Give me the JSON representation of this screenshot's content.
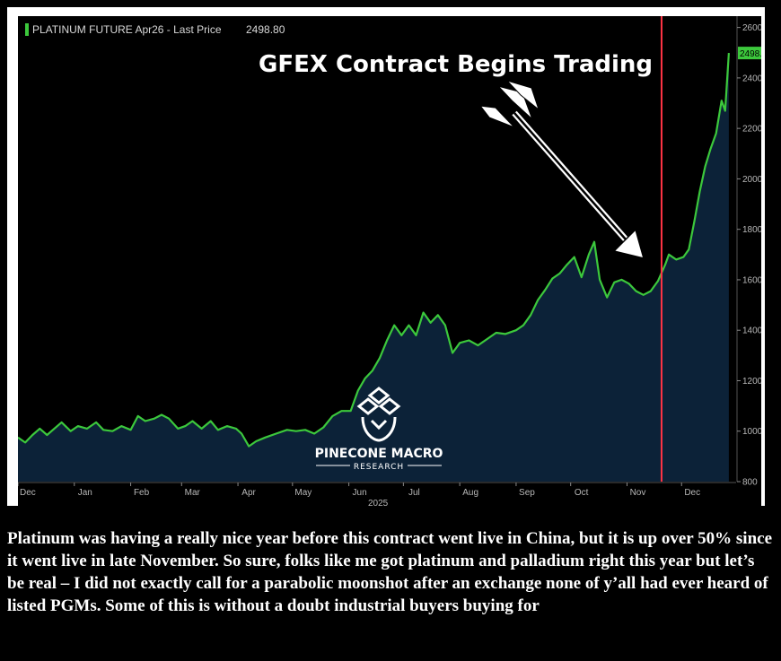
{
  "chart_data": {
    "type": "area",
    "title": "PLATINUM FUTURE Apr26 - Last Price",
    "last_price_label": "2498.80",
    "last_price_badge": "2498.8",
    "year_label": "2025",
    "annotation": "GFEX Contract Begins Trading",
    "event_date": "2025-11-20",
    "xlim": [
      "2024-12-01",
      "2025-12-31"
    ],
    "ylim": [
      800,
      2620
    ],
    "y_ticks": [
      800,
      1000,
      1200,
      1400,
      1600,
      1800,
      2000,
      2200,
      2400,
      2600
    ],
    "x_tick_labels": [
      {
        "label": "Dec",
        "date": "2024-12-01"
      },
      {
        "label": "Jan",
        "date": "2025-01-01"
      },
      {
        "label": "Feb",
        "date": "2025-02-01"
      },
      {
        "label": "Mar",
        "date": "2025-03-01"
      },
      {
        "label": "Apr",
        "date": "2025-04-01"
      },
      {
        "label": "May",
        "date": "2025-05-01"
      },
      {
        "label": "Jun",
        "date": "2025-06-01"
      },
      {
        "label": "Jul",
        "date": "2025-07-01"
      },
      {
        "label": "Aug",
        "date": "2025-08-01"
      },
      {
        "label": "Sep",
        "date": "2025-09-01"
      },
      {
        "label": "Oct",
        "date": "2025-10-01"
      },
      {
        "label": "Nov",
        "date": "2025-11-01"
      },
      {
        "label": "Dec",
        "date": "2025-12-01"
      }
    ],
    "series": [
      {
        "name": "PLATINUM FUTURE Apr26",
        "color": "#3cc83c",
        "fill": "#0c2238",
        "points": [
          [
            "2024-12-01",
            975
          ],
          [
            "2024-12-05",
            955
          ],
          [
            "2024-12-09",
            985
          ],
          [
            "2024-12-13",
            1010
          ],
          [
            "2024-12-17",
            985
          ],
          [
            "2024-12-21",
            1010
          ],
          [
            "2024-12-25",
            1035
          ],
          [
            "2024-12-30",
            1000
          ],
          [
            "2025-01-03",
            1020
          ],
          [
            "2025-01-08",
            1010
          ],
          [
            "2025-01-13",
            1035
          ],
          [
            "2025-01-17",
            1005
          ],
          [
            "2025-01-22",
            1000
          ],
          [
            "2025-01-27",
            1020
          ],
          [
            "2025-02-01",
            1005
          ],
          [
            "2025-02-05",
            1060
          ],
          [
            "2025-02-09",
            1040
          ],
          [
            "2025-02-14",
            1050
          ],
          [
            "2025-02-18",
            1065
          ],
          [
            "2025-02-22",
            1050
          ],
          [
            "2025-02-27",
            1010
          ],
          [
            "2025-03-03",
            1020
          ],
          [
            "2025-03-07",
            1040
          ],
          [
            "2025-03-12",
            1010
          ],
          [
            "2025-03-17",
            1040
          ],
          [
            "2025-03-21",
            1005
          ],
          [
            "2025-03-26",
            1020
          ],
          [
            "2025-03-31",
            1010
          ],
          [
            "2025-04-03",
            990
          ],
          [
            "2025-04-07",
            940
          ],
          [
            "2025-04-11",
            960
          ],
          [
            "2025-04-16",
            975
          ],
          [
            "2025-04-22",
            990
          ],
          [
            "2025-04-28",
            1005
          ],
          [
            "2025-05-03",
            1000
          ],
          [
            "2025-05-08",
            1005
          ],
          [
            "2025-05-13",
            990
          ],
          [
            "2025-05-18",
            1015
          ],
          [
            "2025-05-23",
            1060
          ],
          [
            "2025-05-28",
            1080
          ],
          [
            "2025-06-02",
            1080
          ],
          [
            "2025-06-06",
            1160
          ],
          [
            "2025-06-10",
            1210
          ],
          [
            "2025-06-14",
            1240
          ],
          [
            "2025-06-18",
            1290
          ],
          [
            "2025-06-22",
            1360
          ],
          [
            "2025-06-26",
            1420
          ],
          [
            "2025-06-30",
            1380
          ],
          [
            "2025-07-04",
            1420
          ],
          [
            "2025-07-08",
            1380
          ],
          [
            "2025-07-12",
            1470
          ],
          [
            "2025-07-16",
            1430
          ],
          [
            "2025-07-20",
            1460
          ],
          [
            "2025-07-24",
            1420
          ],
          [
            "2025-07-28",
            1310
          ],
          [
            "2025-08-01",
            1350
          ],
          [
            "2025-08-06",
            1360
          ],
          [
            "2025-08-11",
            1340
          ],
          [
            "2025-08-16",
            1365
          ],
          [
            "2025-08-21",
            1390
          ],
          [
            "2025-08-26",
            1385
          ],
          [
            "2025-09-01",
            1400
          ],
          [
            "2025-09-05",
            1420
          ],
          [
            "2025-09-09",
            1460
          ],
          [
            "2025-09-13",
            1520
          ],
          [
            "2025-09-17",
            1560
          ],
          [
            "2025-09-21",
            1605
          ],
          [
            "2025-09-25",
            1625
          ],
          [
            "2025-09-29",
            1660
          ],
          [
            "2025-10-03",
            1690
          ],
          [
            "2025-10-07",
            1610
          ],
          [
            "2025-10-11",
            1700
          ],
          [
            "2025-10-14",
            1750
          ],
          [
            "2025-10-17",
            1600
          ],
          [
            "2025-10-21",
            1530
          ],
          [
            "2025-10-25",
            1590
          ],
          [
            "2025-10-29",
            1600
          ],
          [
            "2025-11-02",
            1585
          ],
          [
            "2025-11-06",
            1555
          ],
          [
            "2025-11-10",
            1540
          ],
          [
            "2025-11-14",
            1555
          ],
          [
            "2025-11-18",
            1595
          ],
          [
            "2025-11-22",
            1660
          ],
          [
            "2025-11-24",
            1700
          ],
          [
            "2025-11-28",
            1680
          ],
          [
            "2025-12-02",
            1690
          ],
          [
            "2025-12-05",
            1720
          ],
          [
            "2025-12-08",
            1830
          ],
          [
            "2025-12-11",
            1950
          ],
          [
            "2025-12-14",
            2050
          ],
          [
            "2025-12-17",
            2120
          ],
          [
            "2025-12-20",
            2180
          ],
          [
            "2025-12-23",
            2310
          ],
          [
            "2025-12-25",
            2270
          ],
          [
            "2025-12-27",
            2498.8
          ]
        ]
      }
    ]
  },
  "logo": {
    "name": "PINECONE MACRO",
    "sub": "RESEARCH"
  },
  "caption": "Platinum was having a really nice year before this contract went live in China, but it is up over 50% since it went live in late November. So sure, folks like me got platinum and palladium right this year but let’s be real – I did not exactly call for a parabolic moonshot after an exchange none of y’all had ever heard of listed PGMs. Some of this is without a doubt industrial buyers buying for"
}
